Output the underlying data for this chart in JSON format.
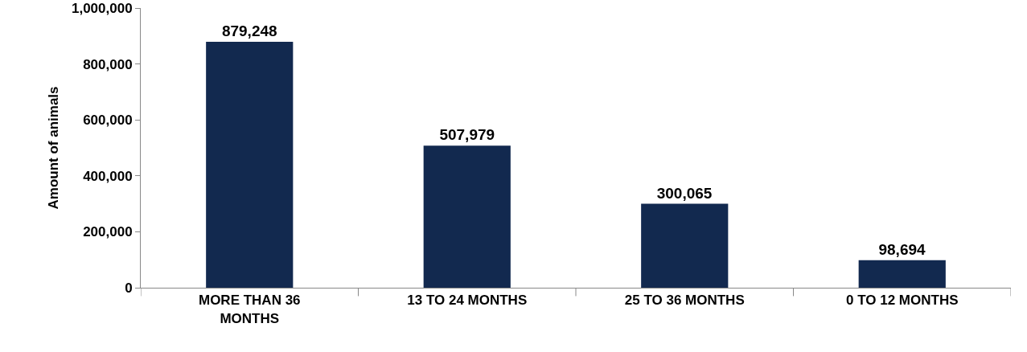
{
  "chart_data": {
    "type": "bar",
    "ylabel": "Amount of animals",
    "categories": [
      "MORE THAN 36 MONTHS",
      "13 TO 24 MONTHS",
      "25 TO 36 MONTHS",
      "0 TO 12 MONTHS"
    ],
    "values": [
      879248,
      507979,
      300065,
      98694
    ],
    "color": "#12294f",
    "value_labels": [
      "879,248",
      "507,979",
      "300,065",
      "98,694"
    ],
    "ylim": [
      0,
      1000000
    ],
    "yticks": [
      {
        "value": 0,
        "label": "0"
      },
      {
        "value": 200000,
        "label": "200,000"
      },
      {
        "value": 400000,
        "label": "400,000"
      },
      {
        "value": 600000,
        "label": "600,000"
      },
      {
        "value": 800000,
        "label": "800,000"
      },
      {
        "value": 1000000,
        "label": "1,000,000"
      }
    ],
    "grid": false
  }
}
